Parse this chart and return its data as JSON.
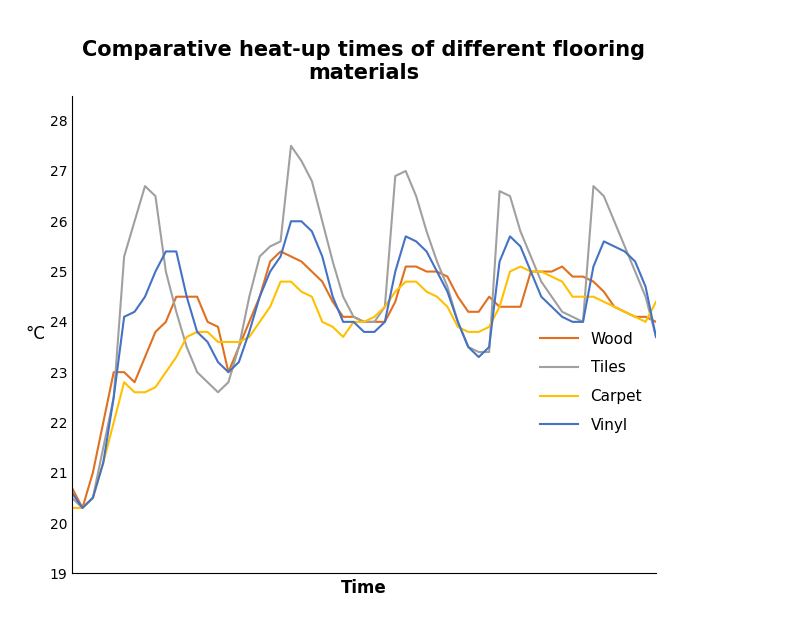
{
  "title": "Comparative heat-up times of different flooring\nmaterials",
  "xlabel": "Time",
  "ylabel": "°C",
  "ylim": [
    19,
    28.5
  ],
  "yticks": [
    19,
    20,
    21,
    22,
    23,
    24,
    25,
    26,
    27,
    28
  ],
  "background_color": "#ffffff",
  "wood_color": "#E07020",
  "tiles_color": "#A0A0A0",
  "carpet_color": "#FFC000",
  "vinyl_color": "#4472C4",
  "wood": [
    20.7,
    20.3,
    21.0,
    22.0,
    23.0,
    23.0,
    22.8,
    23.3,
    23.8,
    24.0,
    24.5,
    24.5,
    24.5,
    24.0,
    23.9,
    23.0,
    23.5,
    24.0,
    24.5,
    25.2,
    25.4,
    25.3,
    25.2,
    25.0,
    24.8,
    24.4,
    24.1,
    24.1,
    24.0,
    24.0,
    24.0,
    24.4,
    25.1,
    25.1,
    25.0,
    25.0,
    24.9,
    24.5,
    24.2,
    24.2,
    24.5,
    24.3,
    24.3,
    24.3,
    25.0,
    25.0,
    25.0,
    25.1,
    24.9,
    24.9,
    24.8,
    24.6,
    24.3,
    24.2,
    24.1,
    24.1,
    24.0
  ],
  "tiles": [
    20.5,
    20.3,
    20.5,
    21.5,
    22.5,
    25.3,
    26.0,
    26.7,
    26.5,
    25.0,
    24.2,
    23.5,
    23.0,
    22.8,
    22.6,
    22.8,
    23.5,
    24.5,
    25.3,
    25.5,
    25.6,
    27.5,
    27.2,
    26.8,
    26.0,
    25.2,
    24.5,
    24.1,
    24.0,
    24.0,
    24.3,
    26.9,
    27.0,
    26.5,
    25.8,
    25.2,
    24.7,
    24.0,
    23.5,
    23.4,
    23.4,
    26.6,
    26.5,
    25.8,
    25.3,
    24.8,
    24.5,
    24.2,
    24.1,
    24.0,
    26.7,
    26.5,
    26.0,
    25.5,
    25.0,
    24.5,
    23.7
  ],
  "carpet": [
    20.3,
    20.3,
    20.5,
    21.2,
    22.0,
    22.8,
    22.6,
    22.6,
    22.7,
    23.0,
    23.3,
    23.7,
    23.8,
    23.8,
    23.6,
    23.6,
    23.6,
    23.7,
    24.0,
    24.3,
    24.8,
    24.8,
    24.6,
    24.5,
    24.0,
    23.9,
    23.7,
    24.0,
    24.0,
    24.1,
    24.3,
    24.6,
    24.8,
    24.8,
    24.6,
    24.5,
    24.3,
    23.9,
    23.8,
    23.8,
    23.9,
    24.3,
    25.0,
    25.1,
    25.0,
    25.0,
    24.9,
    24.8,
    24.5,
    24.5,
    24.5,
    24.4,
    24.3,
    24.2,
    24.1,
    24.0,
    24.4
  ],
  "vinyl": [
    20.6,
    20.3,
    20.5,
    21.2,
    22.5,
    24.1,
    24.2,
    24.5,
    25.0,
    25.4,
    25.4,
    24.5,
    23.8,
    23.6,
    23.2,
    23.0,
    23.2,
    23.8,
    24.5,
    25.0,
    25.3,
    26.0,
    26.0,
    25.8,
    25.3,
    24.5,
    24.0,
    24.0,
    23.8,
    23.8,
    24.0,
    25.0,
    25.7,
    25.6,
    25.4,
    25.0,
    24.6,
    24.0,
    23.5,
    23.3,
    23.5,
    25.2,
    25.7,
    25.5,
    25.0,
    24.5,
    24.3,
    24.1,
    24.0,
    24.0,
    25.1,
    25.6,
    25.5,
    25.4,
    25.2,
    24.7,
    23.7
  ],
  "figsize": [
    8.0,
    6.37
  ],
  "dpi": 100
}
